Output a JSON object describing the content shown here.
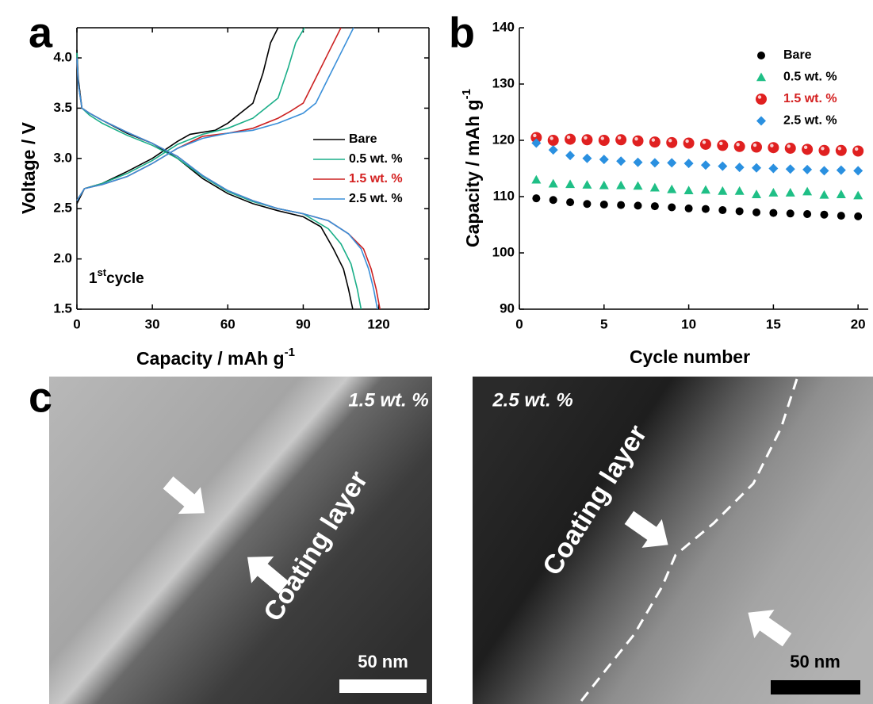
{
  "chart_data": [
    {
      "type": "line",
      "panel_label": "a",
      "x_label": "Capacity / mAh g",
      "x_label_sup": "-1",
      "y_label": "Voltage / V",
      "annotation": {
        "main": "1",
        "superscript": "st",
        "suffix": "cycle"
      },
      "xlim": [
        0,
        140
      ],
      "xticks": [
        0,
        30,
        60,
        90,
        120
      ],
      "ylim": [
        1.5,
        4.3
      ],
      "yticks": [
        1.5,
        {
          "value": 2,
          "label": "2.0"
        },
        2.5,
        {
          "value": 3,
          "label": "3.0"
        },
        3.5,
        {
          "value": 4,
          "label": "4.0"
        }
      ],
      "legend": "center right",
      "legend_text_colors": [
        "#000000",
        "#000000",
        "#d42020",
        "#000000"
      ],
      "series": [
        {
          "name": "Bare",
          "color": "#000000",
          "x": [
            0,
            0.5,
            2,
            5,
            10,
            20,
            30,
            40,
            50,
            60,
            70,
            80,
            90,
            97,
            102,
            106,
            108,
            109.7,
            null,
            0,
            3,
            10,
            20,
            30,
            40,
            45,
            55,
            60,
            65,
            70,
            74,
            77,
            80
          ],
          "values": [
            4.08,
            3.8,
            3.5,
            3.45,
            3.38,
            3.25,
            3.15,
            3.0,
            2.8,
            2.65,
            2.55,
            2.48,
            2.42,
            2.32,
            2.1,
            1.9,
            1.7,
            1.5,
            null,
            2.55,
            2.7,
            2.75,
            2.87,
            3.0,
            3.17,
            3.24,
            3.28,
            3.35,
            3.45,
            3.55,
            3.85,
            4.15,
            4.3
          ]
        },
        {
          "name": "0.5 wt. %",
          "color": "#1aae88",
          "x": [
            0,
            0.5,
            2,
            5,
            10,
            20,
            30,
            40,
            50,
            60,
            70,
            80,
            90,
            100,
            105,
            109,
            111.5,
            113,
            null,
            0,
            3,
            10,
            20,
            30,
            40,
            50,
            60,
            70,
            75,
            80,
            84,
            87,
            90.5
          ],
          "values": [
            4.05,
            3.75,
            3.5,
            3.43,
            3.35,
            3.23,
            3.13,
            3.0,
            2.82,
            2.67,
            2.57,
            2.5,
            2.45,
            2.3,
            2.15,
            1.95,
            1.7,
            1.5,
            null,
            2.58,
            2.7,
            2.75,
            2.85,
            2.98,
            3.14,
            3.24,
            3.3,
            3.4,
            3.5,
            3.6,
            3.9,
            4.15,
            4.3
          ]
        },
        {
          "name": "1.5 wt. %",
          "color": "#cc2222",
          "x": [
            0,
            0.5,
            2,
            5,
            10,
            20,
            30,
            40,
            50,
            60,
            70,
            80,
            90,
            100,
            108,
            114,
            117,
            119,
            120.5,
            null,
            0,
            3,
            10,
            20,
            30,
            40,
            50,
            60,
            70,
            80,
            85,
            90,
            95,
            100,
            105
          ],
          "values": [
            4.0,
            3.75,
            3.5,
            3.45,
            3.38,
            3.26,
            3.15,
            3.02,
            2.83,
            2.68,
            2.58,
            2.5,
            2.45,
            2.38,
            2.25,
            2.1,
            1.9,
            1.7,
            1.5,
            null,
            2.58,
            2.7,
            2.74,
            2.82,
            2.95,
            3.1,
            3.22,
            3.25,
            3.3,
            3.4,
            3.47,
            3.55,
            3.8,
            4.05,
            4.3
          ]
        },
        {
          "name": "2.5 wt. %",
          "color": "#3a8fd9",
          "x": [
            0,
            0.5,
            2,
            5,
            10,
            20,
            30,
            40,
            50,
            60,
            70,
            80,
            90,
            100,
            108,
            113,
            116,
            118,
            119.5,
            null,
            0,
            3,
            10,
            20,
            30,
            40,
            50,
            60,
            70,
            80,
            90,
            95,
            100,
            105,
            110
          ],
          "values": [
            4.0,
            3.75,
            3.5,
            3.45,
            3.38,
            3.26,
            3.15,
            3.02,
            2.83,
            2.68,
            2.58,
            2.5,
            2.45,
            2.38,
            2.25,
            2.1,
            1.9,
            1.7,
            1.5,
            null,
            2.58,
            2.7,
            2.74,
            2.82,
            2.95,
            3.1,
            3.2,
            3.25,
            3.28,
            3.35,
            3.45,
            3.55,
            3.8,
            4.05,
            4.3
          ]
        }
      ]
    },
    {
      "type": "scatter",
      "panel_label": "b",
      "x_label": "Cycle number",
      "y_label": "Capacity / mAh g",
      "y_label_sup": "-1",
      "xlim": [
        0,
        20.6
      ],
      "xticks": [
        0,
        5,
        10,
        15,
        20
      ],
      "ylim": [
        90,
        140
      ],
      "yticks": [
        90,
        100,
        110,
        120,
        130,
        140
      ],
      "legend": "upper right",
      "legend_text_colors": [
        "#000000",
        "#000000",
        "#d42020",
        "#000000"
      ],
      "series": [
        {
          "name": "Bare",
          "color": "#000000",
          "marker": "circle",
          "x": [
            1,
            2,
            3,
            4,
            5,
            6,
            7,
            8,
            9,
            10,
            11,
            12,
            13,
            14,
            15,
            16,
            17,
            18,
            19,
            20
          ],
          "values": [
            109.7,
            109.4,
            109.0,
            108.7,
            108.6,
            108.5,
            108.4,
            108.3,
            108.1,
            107.9,
            107.8,
            107.6,
            107.4,
            107.2,
            107.1,
            107.0,
            106.9,
            106.8,
            106.6,
            106.5
          ]
        },
        {
          "name": "0.5 wt. %",
          "color": "#1fbf86",
          "marker": "triangle",
          "x": [
            1,
            2,
            3,
            4,
            5,
            6,
            7,
            8,
            9,
            10,
            11,
            12,
            13,
            14,
            15,
            16,
            17,
            18,
            19,
            20
          ],
          "values": [
            113.0,
            112.3,
            112.2,
            112.1,
            112.0,
            112.0,
            111.9,
            111.6,
            111.3,
            111.1,
            111.2,
            111.0,
            111.0,
            110.4,
            110.7,
            110.7,
            110.9,
            110.3,
            110.4,
            110.2
          ]
        },
        {
          "name": "1.5 wt. %",
          "color": "#e02020",
          "marker": "sphere",
          "x": [
            1,
            2,
            3,
            4,
            5,
            6,
            7,
            8,
            9,
            10,
            11,
            12,
            13,
            14,
            15,
            16,
            17,
            18,
            19,
            20
          ],
          "values": [
            120.5,
            120.0,
            120.2,
            120.1,
            120.0,
            120.1,
            119.9,
            119.7,
            119.6,
            119.5,
            119.3,
            119.1,
            118.9,
            118.8,
            118.7,
            118.6,
            118.4,
            118.2,
            118.2,
            118.1
          ]
        },
        {
          "name": "2.5 wt. %",
          "color": "#2a90e0",
          "marker": "diamond",
          "x": [
            1,
            2,
            3,
            4,
            5,
            6,
            7,
            8,
            9,
            10,
            11,
            12,
            13,
            14,
            15,
            16,
            17,
            18,
            19,
            20
          ],
          "values": [
            119.5,
            118.3,
            117.3,
            116.8,
            116.6,
            116.3,
            116.1,
            116.0,
            116.0,
            115.9,
            115.6,
            115.4,
            115.2,
            115.1,
            115.0,
            114.9,
            114.8,
            114.6,
            114.7,
            114.6
          ]
        }
      ]
    }
  ],
  "images": {
    "panel_label": "c",
    "items": [
      {
        "label": "1.5 wt. %",
        "annotation": "Coating layer",
        "scale_bar": "50 nm"
      },
      {
        "label": "2.5 wt. %",
        "annotation": "Coating layer",
        "scale_bar": "50 nm"
      }
    ]
  }
}
